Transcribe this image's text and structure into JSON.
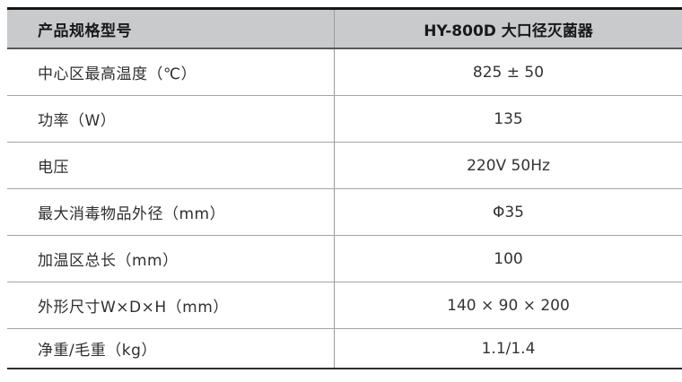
{
  "table": {
    "header": {
      "product_spec_label": "产品规格型号",
      "model_name": "HY-800D 大口径灭菌器"
    },
    "rows": [
      {
        "label": "中心区最高温度（℃）",
        "value": "825 ± 50"
      },
      {
        "label": "功率（W）",
        "value": "135"
      },
      {
        "label": "电压",
        "value": "220V 50Hz"
      },
      {
        "label": "最大消毒物品外径（mm）",
        "value": "Φ35"
      },
      {
        "label": "加温区总长（mm）",
        "value": "100"
      },
      {
        "label": "外形尺寸W×D×H（mm）",
        "value": "140 × 90 × 200"
      },
      {
        "label": "净重/毛重（kg）",
        "value": "1.1/1.4"
      }
    ],
    "colors": {
      "header_bg": "#c9cacc",
      "top_border": "#161616",
      "header_divider": "#58585a",
      "row_divider": "#a3a3a5",
      "column_divider": "#9b9b9d",
      "bottom_border": "#2f2f31",
      "text": "#2f2f31"
    }
  }
}
